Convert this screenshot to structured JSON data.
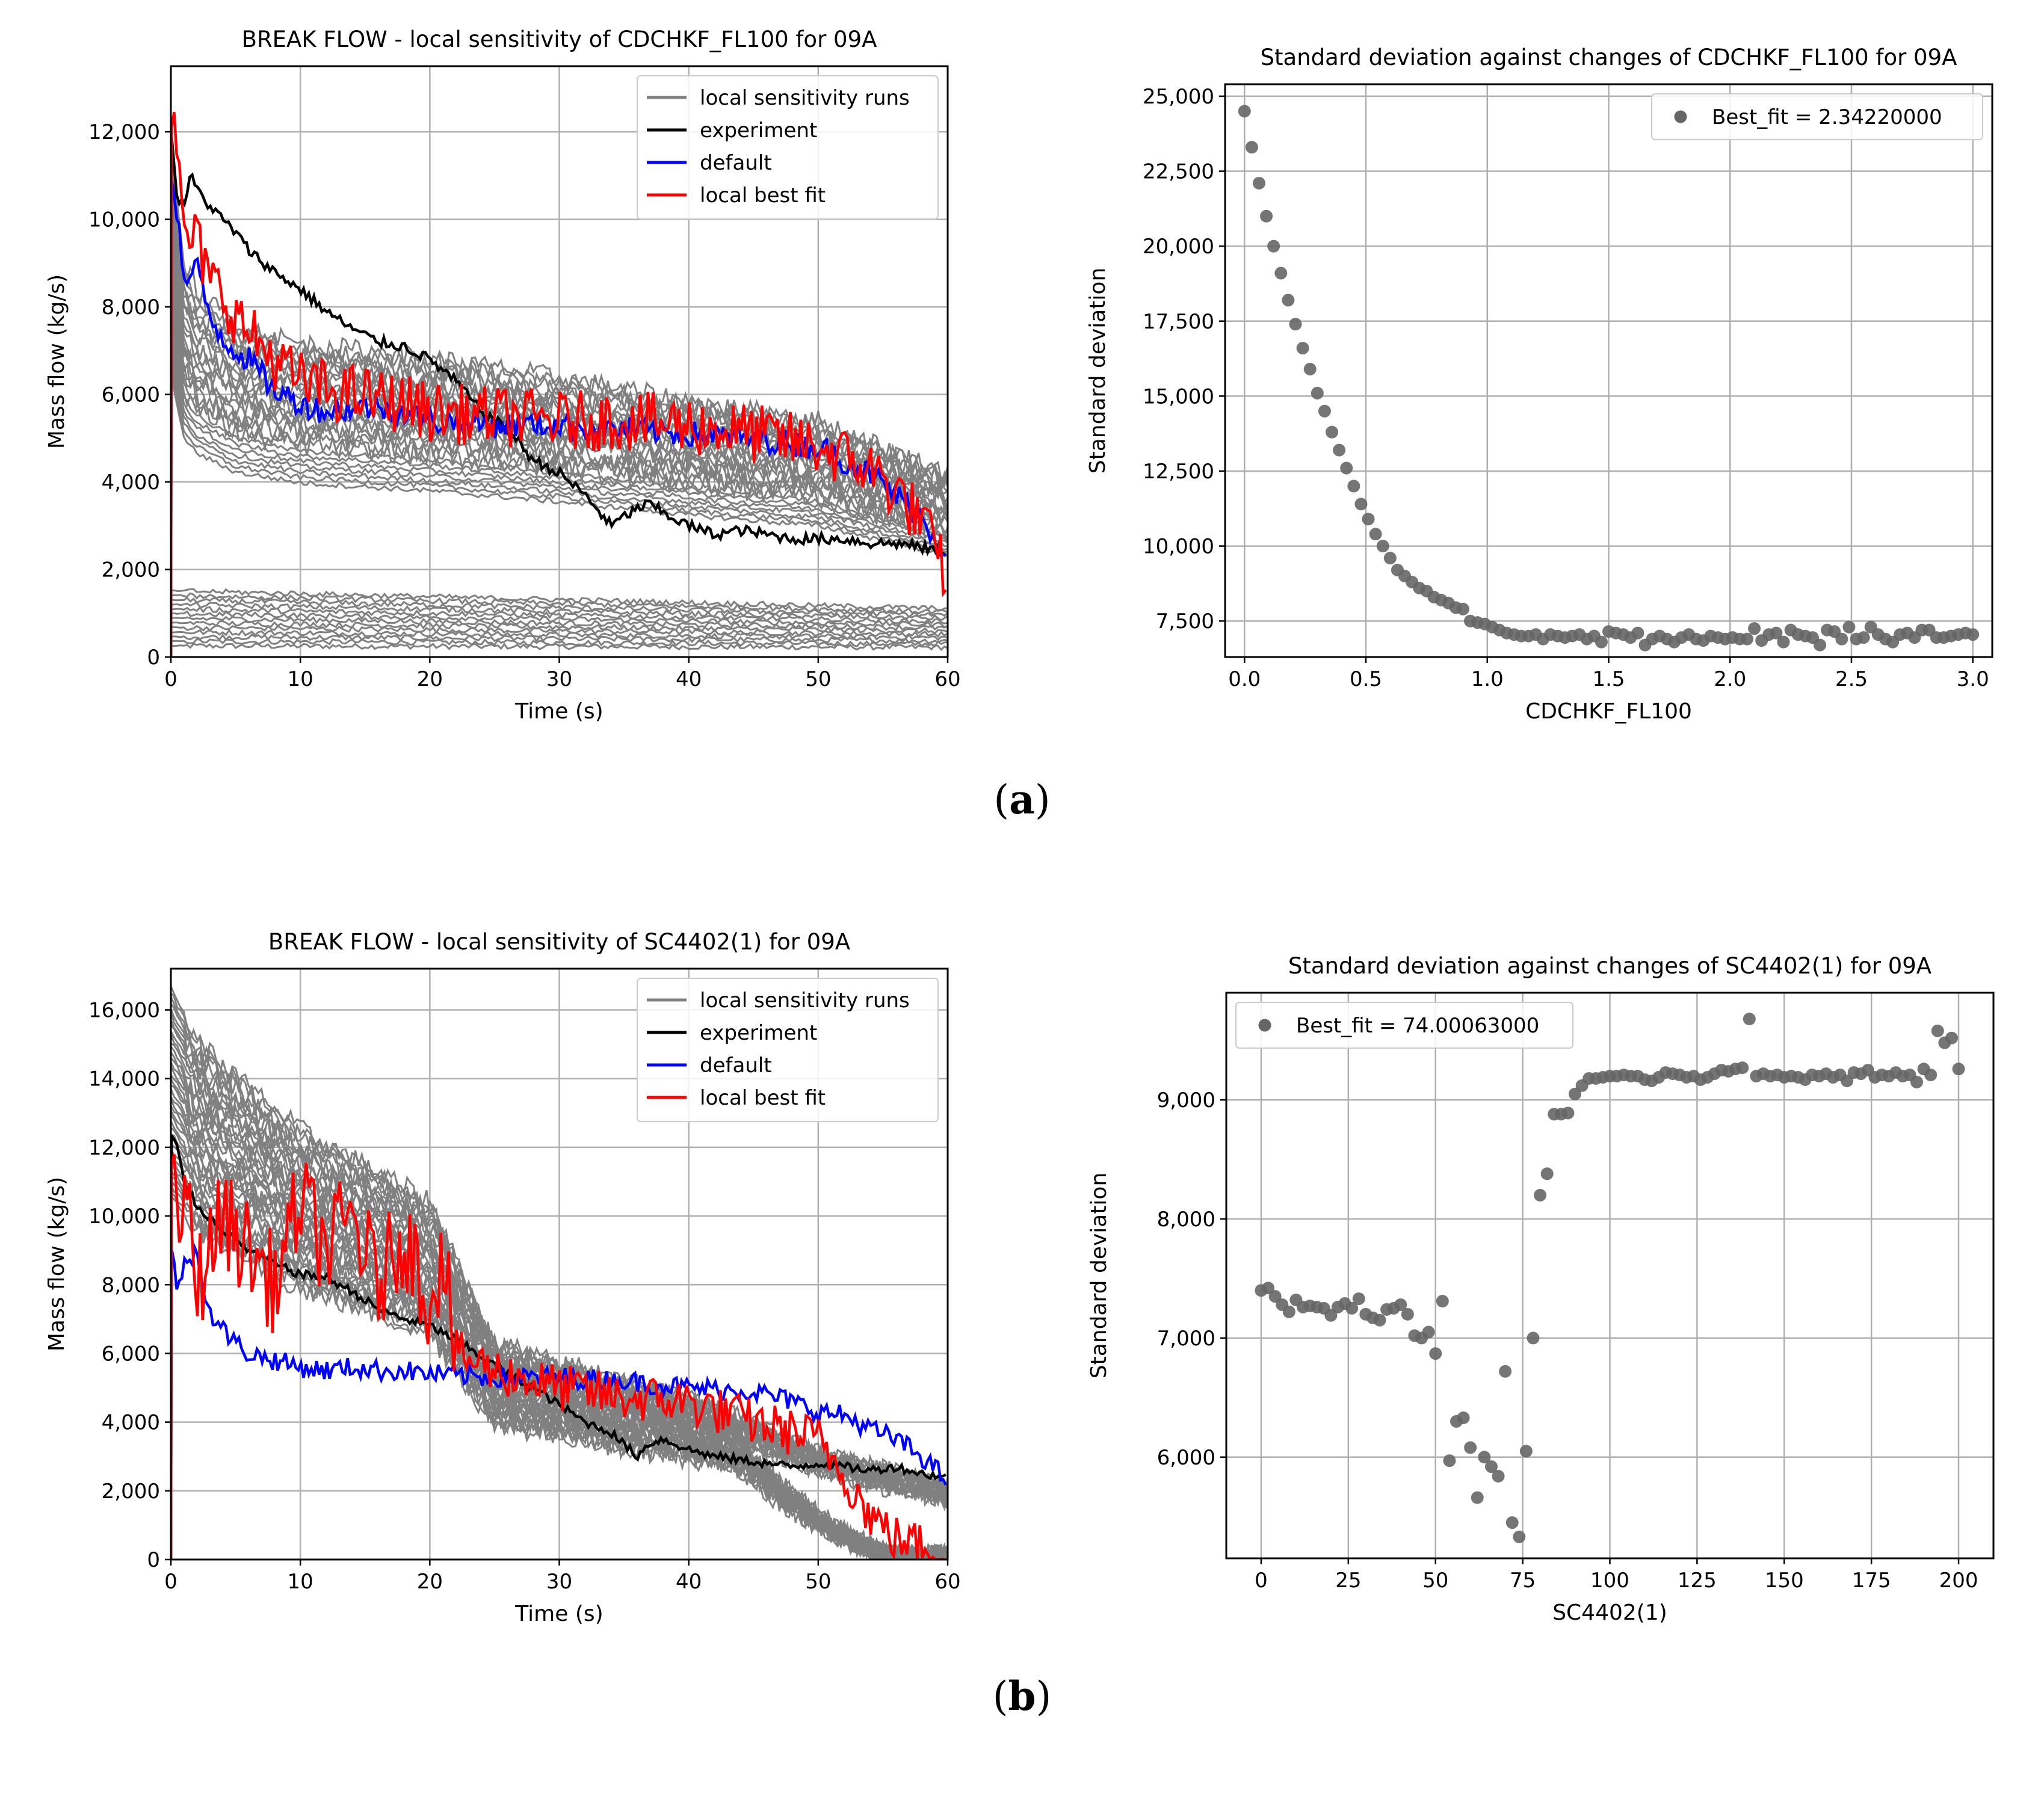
{
  "captions": {
    "a": "a",
    "b": "b"
  },
  "colors": {
    "runs": "#808080",
    "experiment": "#000000",
    "default": "#0000ff",
    "best": "#ff0000",
    "scatter": "#666666"
  },
  "chart_data": [
    {
      "id": "a-left",
      "type": "line",
      "title": "BREAK FLOW - local sensitivity of CDCHKF_FL100 for 09A",
      "xlabel": "Time (s)",
      "ylabel": "Mass flow (kg/s)",
      "xlim": [
        0,
        60
      ],
      "ylim": [
        0,
        13500
      ],
      "xticks": [
        0,
        10,
        20,
        30,
        40,
        50,
        60
      ],
      "yticks": [
        0,
        2000,
        4000,
        6000,
        8000,
        10000,
        12000
      ],
      "yticklabels": [
        "0",
        "2,000",
        "4,000",
        "6,000",
        "8,000",
        "10,000",
        "12,000"
      ],
      "grid": true,
      "legend": "top-right",
      "runs_note": "local sensitivity runs (about 40 gray curves)",
      "series": [
        {
          "name": "local sensitivity runs",
          "color": "#808080",
          "x": [
            0,
            1,
            2,
            5,
            10,
            20,
            30,
            40,
            50,
            60
          ],
          "y": [
            10500,
            8200,
            7600,
            6900,
            6500,
            6200,
            5800,
            5300,
            4900,
            3800
          ]
        },
        {
          "name": "experiment",
          "color": "#000000",
          "x": [
            0,
            0.5,
            1,
            1.5,
            2,
            3,
            4,
            5,
            6,
            8,
            10,
            12,
            14,
            16,
            18,
            20,
            22,
            24,
            26,
            28,
            30,
            32,
            34,
            36,
            37,
            38,
            40,
            42,
            44,
            46,
            48,
            50,
            52,
            54,
            56,
            58,
            60
          ],
          "y": [
            12000,
            10500,
            10300,
            11000,
            10700,
            10300,
            10000,
            9700,
            9300,
            8800,
            8400,
            7900,
            7500,
            7200,
            7100,
            6800,
            6300,
            5600,
            5200,
            4500,
            4200,
            3700,
            3000,
            3400,
            3500,
            3300,
            3000,
            2800,
            2900,
            2800,
            2700,
            2700,
            2700,
            2600,
            2600,
            2500,
            2400
          ]
        },
        {
          "name": "default",
          "color": "#0000ff",
          "x": [
            0,
            0.5,
            1,
            2,
            3,
            4,
            5,
            6,
            8,
            10,
            12,
            14,
            16,
            18,
            20,
            25,
            30,
            35,
            40,
            45,
            50,
            54,
            56,
            58,
            60
          ],
          "y": [
            11000,
            10200,
            8500,
            8900,
            7800,
            7300,
            7000,
            6800,
            6100,
            5800,
            5600,
            5700,
            5700,
            5600,
            5400,
            5300,
            5300,
            5200,
            5100,
            5000,
            4800,
            4200,
            3700,
            3200,
            2300
          ]
        },
        {
          "name": "local best fit",
          "color": "#ff0000",
          "x": [
            0,
            0.5,
            1,
            2,
            3,
            4,
            5,
            6,
            8,
            10,
            12,
            14,
            16,
            18,
            20,
            25,
            30,
            35,
            40,
            45,
            50,
            54,
            56,
            58,
            60
          ],
          "y": [
            12800,
            11200,
            9700,
            9500,
            8600,
            8300,
            7800,
            7400,
            6800,
            6300,
            6100,
            6000,
            5900,
            5800,
            5600,
            5500,
            5400,
            5400,
            5300,
            5100,
            4800,
            4300,
            3800,
            3100,
            1800
          ]
        }
      ]
    },
    {
      "id": "a-right",
      "type": "scatter",
      "title": "Standard deviation against changes of CDCHKF_FL100 for 09A",
      "xlabel": "CDCHKF_FL100",
      "ylabel": "Standard deviation",
      "xlim": [
        -0.08,
        3.08
      ],
      "ylim": [
        6300,
        25400
      ],
      "xticks": [
        0.0,
        0.5,
        1.0,
        1.5,
        2.0,
        2.5,
        3.0
      ],
      "xticklabels": [
        "0.0",
        "0.5",
        "1.0",
        "1.5",
        "2.0",
        "2.5",
        "3.0"
      ],
      "yticks": [
        7500,
        10000,
        12500,
        15000,
        17500,
        20000,
        22500,
        25000
      ],
      "yticklabels": [
        "7,500",
        "10,000",
        "12,500",
        "15,000",
        "17,500",
        "20,000",
        "22,500",
        "25,000"
      ],
      "grid": true,
      "legend": "top-right",
      "series": [
        {
          "name": "Best_fit = 2.34220000",
          "color": "#666666",
          "x": [
            0.0,
            0.03,
            0.06,
            0.09,
            0.12,
            0.15,
            0.18,
            0.21,
            0.24,
            0.27,
            0.3,
            0.33,
            0.36,
            0.39,
            0.42,
            0.45,
            0.48,
            0.51,
            0.54,
            0.57,
            0.6,
            0.63,
            0.66,
            0.69,
            0.72,
            0.75,
            0.78,
            0.81,
            0.84,
            0.87,
            0.9,
            0.93,
            0.96,
            0.99,
            1.02,
            1.05,
            1.08,
            1.11,
            1.14,
            1.17,
            1.2,
            1.23,
            1.26,
            1.29,
            1.32,
            1.35,
            1.38,
            1.41,
            1.44,
            1.47,
            1.5,
            1.53,
            1.56,
            1.59,
            1.62,
            1.65,
            1.68,
            1.71,
            1.74,
            1.77,
            1.8,
            1.83,
            1.86,
            1.89,
            1.92,
            1.95,
            1.98,
            2.01,
            2.04,
            2.07,
            2.1,
            2.13,
            2.16,
            2.19,
            2.22,
            2.25,
            2.28,
            2.31,
            2.34,
            2.37,
            2.4,
            2.43,
            2.46,
            2.49,
            2.52,
            2.55,
            2.58,
            2.61,
            2.64,
            2.67,
            2.7,
            2.73,
            2.76,
            2.79,
            2.82,
            2.85,
            2.88,
            2.91,
            2.94,
            2.97,
            3.0
          ],
          "y": [
            24500,
            23300,
            22100,
            21000,
            20000,
            19100,
            18200,
            17400,
            16600,
            15900,
            15100,
            14500,
            13800,
            13200,
            12600,
            12000,
            11400,
            10900,
            10400,
            10000,
            9600,
            9200,
            9000,
            8800,
            8600,
            8500,
            8300,
            8200,
            8100,
            7950,
            7900,
            7500,
            7450,
            7400,
            7300,
            7200,
            7100,
            7050,
            7000,
            7000,
            7050,
            6900,
            7050,
            7000,
            6950,
            7000,
            7050,
            6900,
            7000,
            6800,
            7150,
            7100,
            7050,
            6950,
            7100,
            6700,
            6900,
            7000,
            6900,
            6800,
            6950,
            7050,
            6900,
            6850,
            7000,
            6950,
            6900,
            6950,
            6900,
            6900,
            7250,
            6850,
            7050,
            7100,
            6800,
            7200,
            7050,
            7000,
            6950,
            6700,
            7200,
            7150,
            6900,
            7300,
            6900,
            6950,
            7300,
            7050,
            6900,
            6800,
            7050,
            7100,
            6950,
            7200,
            7200,
            6950,
            6950,
            7000,
            7050,
            7100,
            7050
          ]
        }
      ]
    },
    {
      "id": "b-left",
      "type": "line",
      "title": "BREAK FLOW - local sensitivity of SC4402(1) for 09A",
      "xlabel": "Time (s)",
      "ylabel": "Mass flow (kg/s)",
      "xlim": [
        0,
        60
      ],
      "ylim": [
        0,
        17200
      ],
      "xticks": [
        0,
        10,
        20,
        30,
        40,
        50,
        60
      ],
      "yticks": [
        0,
        2000,
        4000,
        6000,
        8000,
        10000,
        12000,
        14000,
        16000
      ],
      "yticklabels": [
        "0",
        "2,000",
        "4,000",
        "6,000",
        "8,000",
        "10,000",
        "12,000",
        "14,000",
        "16,000"
      ],
      "grid": true,
      "legend": "top-right",
      "series": [
        {
          "name": "local sensitivity runs",
          "color": "#808080",
          "x": [
            0,
            1,
            2,
            5,
            10,
            15,
            20,
            25,
            30,
            35,
            40,
            45,
            50,
            55,
            60
          ],
          "y": [
            16000,
            15300,
            14500,
            13500,
            12000,
            11000,
            10000,
            6000,
            5500,
            5000,
            4500,
            3800,
            3000,
            2500,
            2000
          ]
        },
        {
          "name": "experiment",
          "color": "#000000",
          "x": [
            0,
            0.5,
            1,
            2,
            4,
            6,
            8,
            10,
            12,
            14,
            16,
            18,
            20,
            22,
            24,
            26,
            28,
            30,
            32,
            34,
            36,
            37,
            38,
            40,
            42,
            44,
            46,
            48,
            50,
            52,
            54,
            56,
            58,
            60
          ],
          "y": [
            12300,
            12000,
            11000,
            10300,
            9600,
            9000,
            8600,
            8300,
            8200,
            7800,
            7300,
            7000,
            6800,
            6400,
            5900,
            5400,
            5000,
            4500,
            4000,
            3700,
            3000,
            3400,
            3500,
            3200,
            3000,
            2900,
            2800,
            2700,
            2800,
            2700,
            2600,
            2700,
            2500,
            2400
          ]
        },
        {
          "name": "default",
          "color": "#0000ff",
          "x": [
            0,
            0.5,
            1,
            2,
            3,
            4,
            5,
            6,
            8,
            10,
            12,
            14,
            16,
            18,
            20,
            25,
            30,
            35,
            40,
            45,
            48,
            50,
            52,
            54,
            56,
            58,
            60
          ],
          "y": [
            9000,
            8000,
            8500,
            9000,
            7200,
            6700,
            6300,
            6000,
            5800,
            5600,
            5500,
            5600,
            5500,
            5500,
            5400,
            5300,
            5300,
            5200,
            5000,
            4900,
            4600,
            4300,
            4200,
            3800,
            3500,
            3000,
            2300
          ]
        },
        {
          "name": "local best fit",
          "color": "#ff0000",
          "x": [
            0,
            0.5,
            1,
            2,
            4,
            6,
            8,
            10,
            12,
            14,
            16,
            18,
            20,
            21,
            22,
            25,
            30,
            35,
            40,
            45,
            50,
            52,
            54,
            56,
            58,
            60
          ],
          "y": [
            12000,
            9000,
            11000,
            8000,
            10000,
            9000,
            8000,
            10500,
            9000,
            10000,
            8000,
            9500,
            7500,
            9000,
            6000,
            5500,
            5000,
            4700,
            4600,
            4000,
            3500,
            2500,
            1300,
            600,
            400,
            200
          ]
        }
      ]
    },
    {
      "id": "b-right",
      "type": "scatter",
      "title": "Standard deviation against changes of SC4402(1) for 09A",
      "xlabel": "SC4402(1)",
      "ylabel": "Standard deviation",
      "xlim": [
        -10,
        210
      ],
      "ylim": [
        5150,
        9900
      ],
      "xticks": [
        0,
        25,
        50,
        75,
        100,
        125,
        150,
        175,
        200
      ],
      "yticks": [
        6000,
        7000,
        8000,
        9000
      ],
      "yticklabels": [
        "6,000",
        "7,000",
        "8,000",
        "9,000"
      ],
      "grid": true,
      "legend": "top-left",
      "series": [
        {
          "name": "Best_fit = 74.00063000",
          "color": "#666666",
          "x": [
            0,
            2,
            4,
            6,
            8,
            10,
            12,
            14,
            16,
            18,
            20,
            22,
            24,
            26,
            28,
            30,
            32,
            34,
            36,
            38,
            40,
            42,
            44,
            46,
            48,
            50,
            52,
            54,
            56,
            58,
            60,
            62,
            64,
            66,
            68,
            70,
            72,
            74,
            76,
            78,
            80,
            82,
            84,
            86,
            88,
            90,
            92,
            94,
            96,
            98,
            100,
            102,
            104,
            106,
            108,
            110,
            112,
            114,
            116,
            118,
            120,
            122,
            124,
            126,
            128,
            130,
            132,
            134,
            136,
            138,
            140,
            142,
            144,
            146,
            148,
            150,
            152,
            154,
            156,
            158,
            160,
            162,
            164,
            166,
            168,
            170,
            172,
            174,
            176,
            178,
            180,
            182,
            184,
            186,
            188,
            190,
            192,
            194,
            196,
            198,
            200
          ],
          "y": [
            7400,
            7420,
            7350,
            7280,
            7220,
            7320,
            7260,
            7270,
            7260,
            7250,
            7190,
            7260,
            7290,
            7250,
            7330,
            7200,
            7170,
            7150,
            7240,
            7250,
            7280,
            7200,
            7020,
            7000,
            7050,
            6870,
            7310,
            5970,
            6300,
            6330,
            6080,
            5660,
            6000,
            5920,
            5840,
            6720,
            5450,
            5330,
            6050,
            7000,
            8200,
            8380,
            8880,
            8880,
            8890,
            9050,
            9120,
            9180,
            9180,
            9190,
            9200,
            9200,
            9210,
            9200,
            9200,
            9170,
            9160,
            9190,
            9230,
            9220,
            9210,
            9190,
            9200,
            9170,
            9190,
            9220,
            9250,
            9240,
            9260,
            9270,
            9680,
            9200,
            9220,
            9200,
            9210,
            9190,
            9200,
            9190,
            9170,
            9210,
            9200,
            9220,
            9190,
            9210,
            9160,
            9230,
            9220,
            9250,
            9190,
            9210,
            9200,
            9230,
            9200,
            9210,
            9150,
            9260,
            9210,
            9580,
            9480,
            9520,
            9260
          ]
        }
      ]
    }
  ]
}
